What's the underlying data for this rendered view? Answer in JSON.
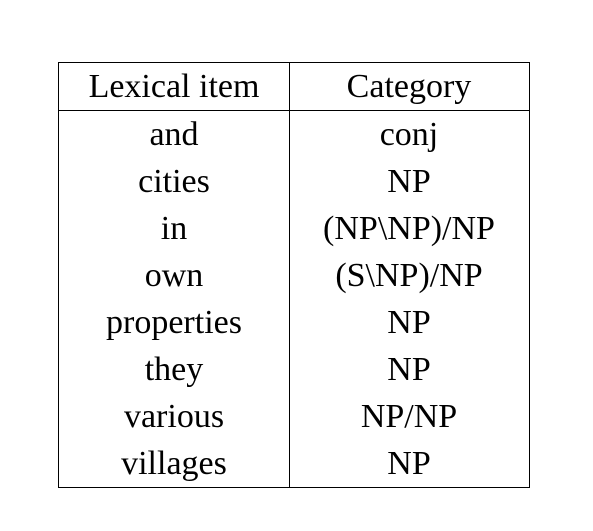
{
  "table": {
    "headers": [
      "Lexical item",
      "Category"
    ],
    "rows": [
      {
        "item": "and",
        "category": "conj"
      },
      {
        "item": "cities",
        "category": "NP"
      },
      {
        "item": "in",
        "category": "(NP\\NP)/NP"
      },
      {
        "item": "own",
        "category": "(S\\NP)/NP"
      },
      {
        "item": "properties",
        "category": "NP"
      },
      {
        "item": "they",
        "category": "NP"
      },
      {
        "item": "various",
        "category": "NP/NP"
      },
      {
        "item": "villages",
        "category": "NP"
      }
    ]
  }
}
